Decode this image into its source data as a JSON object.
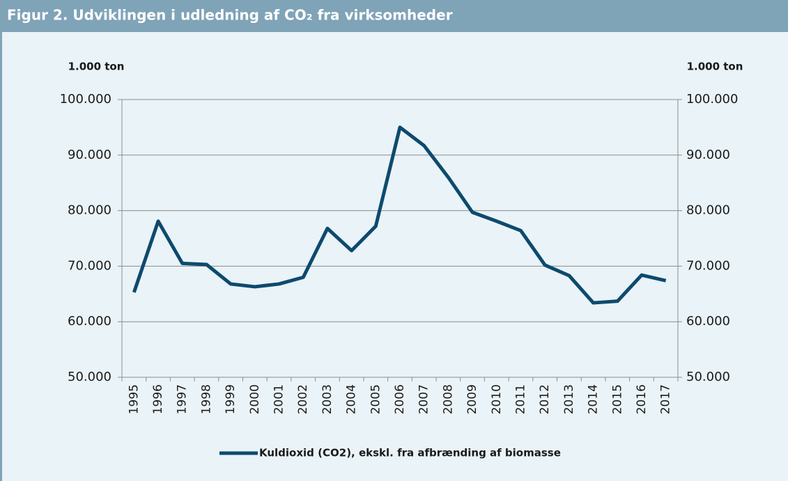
{
  "chart_data": {
    "type": "line",
    "title": "Figur 2. Udviklingen i udledning af CO₂ fra virksomheder",
    "ylabel": "1.000 ton",
    "y2label": "1.000 ton",
    "categories": [
      "1995",
      "1996",
      "1997",
      "1998",
      "1999",
      "2000",
      "2001",
      "2002",
      "2003",
      "2004",
      "2005",
      "2006",
      "2007",
      "2008",
      "2009",
      "2010",
      "2011",
      "2012",
      "2013",
      "2014",
      "2015",
      "2016",
      "2017"
    ],
    "series": [
      {
        "name": "Kuldioxid (CO2), ekskl. fra afbrænding af biomasse",
        "color": "#0d4a6e",
        "values": [
          65300,
          78100,
          70500,
          70300,
          66800,
          66300,
          66800,
          68000,
          76800,
          72800,
          77200,
          95000,
          91700,
          86000,
          79700,
          78100,
          76400,
          70200,
          68300,
          63400,
          63700,
          68400,
          67400
        ]
      }
    ],
    "ylim": [
      50000,
      100000
    ],
    "yticks": [
      {
        "value": 50000,
        "label": "50.000"
      },
      {
        "value": 60000,
        "label": "60.000"
      },
      {
        "value": 70000,
        "label": "70.000"
      },
      {
        "value": 80000,
        "label": "80.000"
      },
      {
        "value": 90000,
        "label": "90.000"
      },
      {
        "value": 100000,
        "label": "100.000"
      }
    ],
    "y2lim": [
      50000,
      100000
    ],
    "y2ticks": [
      {
        "value": 50000,
        "label": "50.000"
      },
      {
        "value": 60000,
        "label": "60.000"
      },
      {
        "value": 70000,
        "label": "70.000"
      },
      {
        "value": 80000,
        "label": "80.000"
      },
      {
        "value": 90000,
        "label": "90.000"
      },
      {
        "value": 100000,
        "label": "100.000"
      }
    ],
    "grid": true,
    "legend": "bottom"
  }
}
